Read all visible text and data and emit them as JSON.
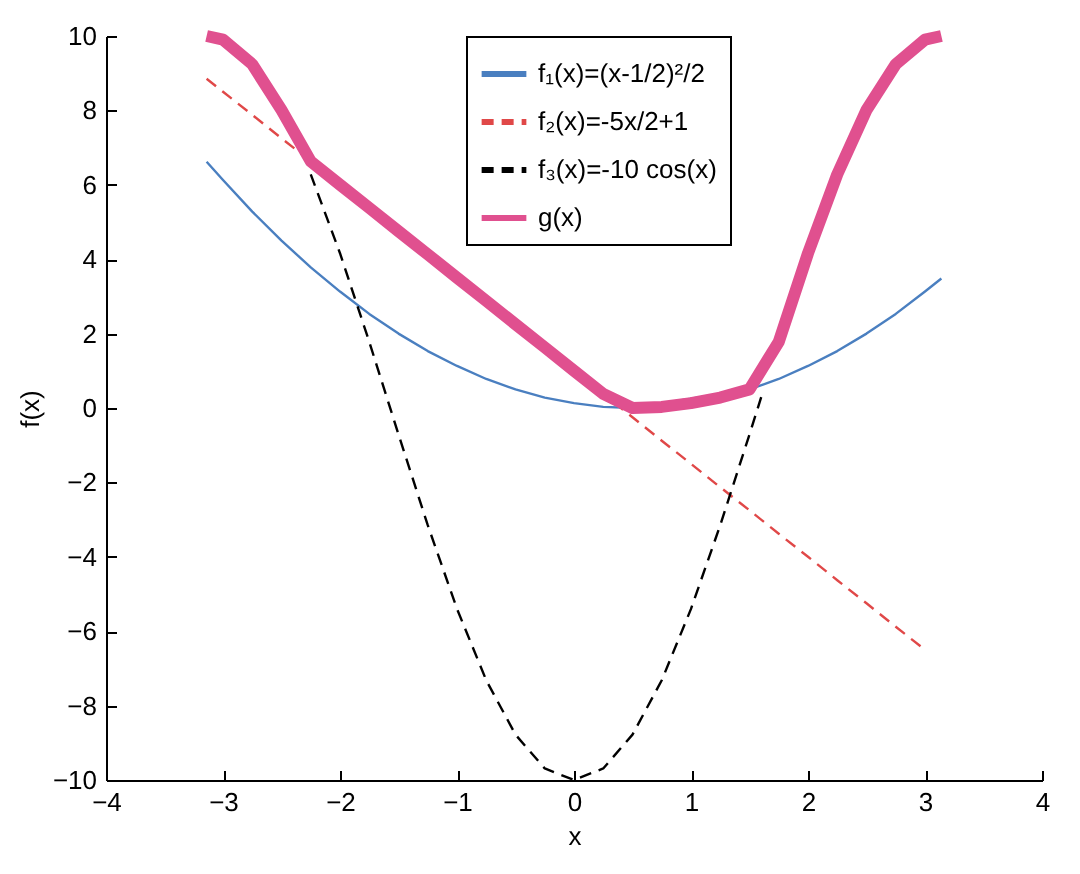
{
  "chart_data": {
    "type": "line",
    "xlabel": "x",
    "ylabel": "f(x)",
    "x": [
      -3.14,
      -3,
      -2.75,
      -2.5,
      -2.25,
      -2,
      -1.75,
      -1.5,
      -1.25,
      -1,
      -0.75,
      -0.5,
      -0.25,
      0,
      0.25,
      0.5,
      0.75,
      1,
      1.25,
      1.5,
      1.75,
      2,
      2.25,
      2.5,
      2.75,
      3,
      3.14
    ],
    "series": [
      {
        "name": "f₁(x)=(x-1/2)²/2",
        "color": "#4a7fc0",
        "line_style": "solid",
        "values": [
          6.62,
          6.13,
          5.28,
          4.5,
          3.78,
          3.13,
          2.53,
          2,
          1.53,
          1.13,
          0.78,
          0.5,
          0.28,
          0.13,
          0.03,
          0,
          null,
          null,
          null,
          0.5,
          0.78,
          1.13,
          1.53,
          2,
          2.53,
          3.13,
          3.48
        ]
      },
      {
        "name": "f₂(x)=-5x/2+1",
        "color": "#e04848",
        "line_style": "dashed",
        "values": [
          8.85,
          8.5,
          7.88,
          7.25,
          6.63,
          6,
          5.38,
          4.75,
          4.13,
          3.5,
          2.88,
          2.25,
          1.63,
          1,
          0.38,
          -0.25,
          -0.88,
          -1.5,
          -2.13,
          -2.75,
          -3.38,
          -4,
          -4.63,
          -5.25,
          -5.88,
          -6.5,
          null
        ]
      },
      {
        "name": "f₃(x)=-10 cos(x)",
        "color": "#000000",
        "line_style": "dashed",
        "x": [
          -2.25,
          -2,
          -1.75,
          -1.5,
          -1.25,
          -1,
          -0.75,
          -0.5,
          -0.25,
          0,
          0.25,
          0.5,
          0.75,
          1,
          1.25,
          1.5,
          1.6
        ],
        "values": [
          6.28,
          4.16,
          1.78,
          -0.71,
          -3.15,
          -5.4,
          -7.32,
          -8.78,
          -9.69,
          -10,
          -9.69,
          -8.78,
          -7.32,
          -5.4,
          -3.15,
          -0.71,
          0.29
        ]
      },
      {
        "name": "g(x)",
        "color": "#e0508f",
        "line_style": "solid",
        "values": [
          10,
          9.9,
          9.24,
          8.01,
          6.63,
          6,
          5.38,
          4.75,
          4.13,
          3.5,
          2.88,
          2.25,
          1.63,
          1,
          0.38,
          0,
          0.03,
          0.13,
          0.28,
          0.5,
          1.78,
          4.16,
          6.28,
          8.01,
          9.24,
          9.9,
          10
        ]
      }
    ],
    "xlim": [
      -4,
      4
    ],
    "xticks": [
      -4,
      -3,
      -2,
      -1,
      0,
      1,
      2,
      3,
      4
    ],
    "ylim": [
      -10,
      10
    ],
    "yticks": [
      -10,
      -8,
      -6,
      -4,
      -2,
      0,
      2,
      4,
      6,
      8,
      10
    ],
    "grid": false,
    "legend": "top right"
  }
}
